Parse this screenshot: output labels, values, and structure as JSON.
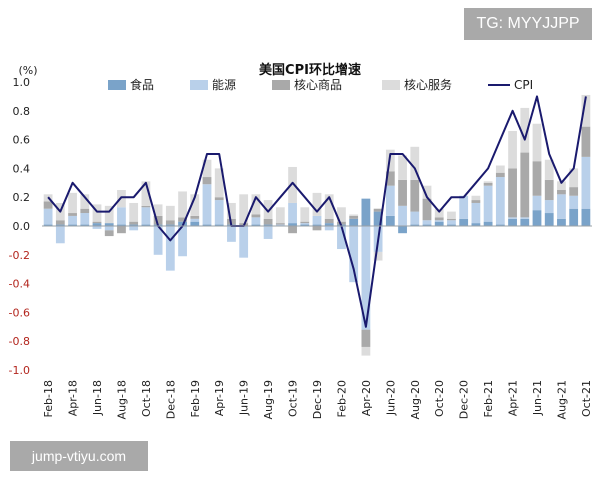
{
  "watermarks": {
    "top": "TG: MYYJJPP",
    "bottom": "jump-vtiyu.com"
  },
  "chart_data": {
    "type": "bar",
    "title": "美国CPI环比增速",
    "ylabel": "(%)",
    "xlabel": "",
    "ylim": [
      -1.0,
      1.0
    ],
    "yticks": [
      "1.0",
      "0.8",
      "0.6",
      "0.4",
      "0.2",
      "0.0",
      "-0.2",
      "-0.4",
      "-0.6",
      "-0.8",
      "-1.0"
    ],
    "grid": false,
    "legend_position": "top",
    "stacked": true,
    "categories": [
      "Feb-18",
      "Mar-18",
      "Apr-18",
      "May-18",
      "Jun-18",
      "Jul-18",
      "Aug-18",
      "Sep-18",
      "Oct-18",
      "Nov-18",
      "Dec-18",
      "Jan-19",
      "Feb-19",
      "Mar-19",
      "Apr-19",
      "May-19",
      "Jun-19",
      "Jul-19",
      "Aug-19",
      "Sep-19",
      "Oct-19",
      "Nov-19",
      "Dec-19",
      "Jan-20",
      "Feb-20",
      "Mar-20",
      "Apr-20",
      "May-20",
      "Jun-20",
      "Jul-20",
      "Aug-20",
      "Sep-20",
      "Oct-20",
      "Nov-20",
      "Dec-20",
      "Jan-21",
      "Feb-21",
      "Mar-21",
      "Apr-21",
      "May-21",
      "Jun-21",
      "Jul-21",
      "Aug-21",
      "Sep-21",
      "Oct-21"
    ],
    "series": [
      {
        "name": "食品",
        "type": "bar",
        "color": "#7aa3c9",
        "values": [
          0.01,
          0.01,
          0.01,
          0.01,
          0.02,
          0.02,
          0.01,
          0.01,
          0.01,
          0.01,
          0.01,
          0.03,
          0.03,
          0.01,
          0.01,
          0.01,
          0.0,
          0.01,
          0.01,
          0.0,
          0.02,
          0.01,
          0.01,
          0.02,
          0.01,
          0.05,
          0.19,
          0.1,
          0.07,
          -0.05,
          0.01,
          0.01,
          0.03,
          0.01,
          0.05,
          0.02,
          0.03,
          0.01,
          0.05,
          0.05,
          0.11,
          0.09,
          0.05,
          0.12,
          0.12
        ]
      },
      {
        "name": "能源",
        "type": "bar",
        "color": "#b9d0ea",
        "values": [
          0.11,
          -0.12,
          0.06,
          0.08,
          -0.02,
          -0.03,
          0.12,
          -0.03,
          0.12,
          -0.2,
          -0.31,
          -0.21,
          0.02,
          0.28,
          0.17,
          -0.11,
          -0.22,
          0.05,
          -0.09,
          0.01,
          0.14,
          0.01,
          0.06,
          -0.03,
          -0.16,
          -0.39,
          -0.72,
          -0.18,
          0.21,
          0.14,
          0.09,
          0.03,
          0.01,
          0.03,
          0.16,
          0.14,
          0.25,
          0.33,
          0.01,
          0.01,
          0.1,
          0.09,
          0.17,
          0.09,
          0.36
        ]
      },
      {
        "name": "核心商品",
        "type": "bar",
        "color": "#a9a9a9",
        "values": [
          0.05,
          0.03,
          0.02,
          0.03,
          0.01,
          -0.04,
          -0.05,
          0.02,
          0.01,
          0.06,
          0.03,
          0.03,
          0.02,
          0.05,
          0.02,
          0.04,
          0.02,
          0.02,
          0.04,
          0.01,
          -0.05,
          0.01,
          -0.03,
          0.03,
          0.02,
          0.02,
          -0.12,
          0.02,
          0.1,
          0.18,
          0.22,
          0.15,
          0.02,
          0.01,
          0.0,
          0.02,
          0.02,
          0.03,
          0.34,
          0.45,
          0.24,
          0.14,
          0.03,
          0.06,
          0.21
        ]
      },
      {
        "name": "核心服务",
        "type": "bar",
        "color": "#dcdcdc",
        "values": [
          0.05,
          0.12,
          0.14,
          0.1,
          0.12,
          0.12,
          0.12,
          0.13,
          0.17,
          0.08,
          0.1,
          0.18,
          0.15,
          0.12,
          0.2,
          0.11,
          0.2,
          0.14,
          0.13,
          0.11,
          0.25,
          0.1,
          0.16,
          0.17,
          0.1,
          0.01,
          -0.06,
          -0.06,
          0.15,
          0.17,
          0.23,
          0.09,
          0.06,
          0.05,
          0.0,
          0.03,
          0.01,
          0.05,
          0.26,
          0.31,
          0.26,
          0.14,
          0.06,
          0.13,
          0.22
        ]
      },
      {
        "name": "CPI",
        "type": "line",
        "color": "#1a1a6e",
        "values": [
          0.2,
          0.1,
          0.3,
          0.2,
          0.1,
          0.1,
          0.2,
          0.2,
          0.3,
          0.0,
          -0.1,
          0.0,
          0.2,
          0.5,
          0.5,
          0.0,
          0.0,
          0.2,
          0.1,
          0.2,
          0.3,
          0.2,
          0.1,
          0.2,
          0.0,
          -0.3,
          -0.7,
          -0.1,
          0.5,
          0.5,
          0.4,
          0.2,
          0.1,
          0.2,
          0.2,
          0.3,
          0.4,
          0.6,
          0.8,
          0.6,
          0.9,
          0.5,
          0.3,
          0.4,
          0.9
        ]
      }
    ],
    "tick_labels": [
      "Feb-18",
      "Apr-18",
      "Jun-18",
      "Aug-18",
      "Oct-18",
      "Dec-18",
      "Feb-19",
      "Apr-19",
      "Jun-19",
      "Aug-19",
      "Oct-19",
      "Dec-19",
      "Feb-20",
      "Apr-20",
      "Jun-20",
      "Aug-20",
      "Oct-20",
      "Dec-20",
      "Feb-21",
      "Apr-21",
      "Jun-21",
      "Aug-21",
      "Oct-21"
    ]
  }
}
